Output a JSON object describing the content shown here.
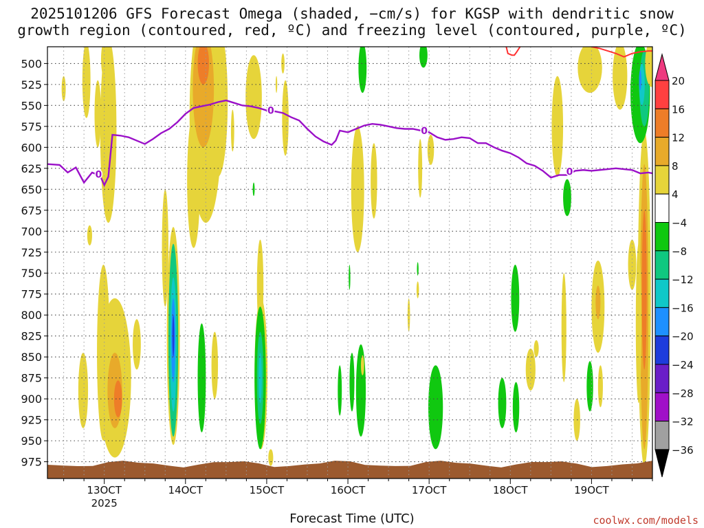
{
  "chart_data": {
    "type": "heatmap",
    "title": "2025101206 GFS Forecast Omega (shaded, −cm/s) for KGSP with dendritic snow",
    "title_line2": "growth region (contoured, red, ºC) and freezing level (contoured, purple, ºC)",
    "xlabel": "Forecast Time (UTC)",
    "credit": "coolwx.com/models",
    "xlim_days": [
      12.3,
      19.75
    ],
    "ylim_hpa": [
      480,
      995
    ],
    "x_ticks": [
      {
        "day": 13,
        "label": "13OCT",
        "sub": "2025"
      },
      {
        "day": 14,
        "label": "14OCT",
        "sub": ""
      },
      {
        "day": 15,
        "label": "15OCT",
        "sub": ""
      },
      {
        "day": 16,
        "label": "16OCT",
        "sub": ""
      },
      {
        "day": 17,
        "label": "17OCT",
        "sub": ""
      },
      {
        "day": 18,
        "label": "18OCT",
        "sub": ""
      },
      {
        "day": 19,
        "label": "19OCT",
        "sub": ""
      }
    ],
    "y_ticks": [
      500,
      525,
      550,
      575,
      600,
      625,
      650,
      675,
      700,
      725,
      750,
      775,
      800,
      825,
      850,
      875,
      900,
      925,
      950,
      975
    ],
    "colorbar": {
      "levels": [
        "20",
        "16",
        "12",
        "8",
        "4",
        "−4",
        "−8",
        "−12",
        "−16",
        "−20",
        "−24",
        "−28",
        "−32",
        "−36"
      ],
      "colors": [
        "#ee3a7f",
        "#ff4040",
        "#ee7d28",
        "#e8aa2a",
        "#e6d43a",
        "#ffffff",
        "#10c810",
        "#10c880",
        "#10c8c8",
        "#1e90ff",
        "#1e3cdc",
        "#6a1ec8",
        "#a010c8",
        "#a0a0a0",
        "#000000"
      ]
    },
    "freezing_level": {
      "label": "0",
      "x": [
        12.3,
        12.45,
        12.55,
        12.65,
        12.75,
        12.85,
        12.95,
        13.0,
        13.05,
        13.1,
        13.2,
        13.3,
        13.4,
        13.5,
        13.6,
        13.7,
        13.8,
        13.9,
        14.0,
        14.1,
        14.2,
        14.3,
        14.4,
        14.5,
        14.6,
        14.7,
        14.8,
        14.9,
        15.0,
        15.1,
        15.2,
        15.3,
        15.4,
        15.5,
        15.6,
        15.7,
        15.8,
        15.85,
        15.9,
        16.0,
        16.1,
        16.2,
        16.3,
        16.4,
        16.5,
        16.6,
        16.7,
        16.8,
        16.9,
        17.0,
        17.1,
        17.2,
        17.3,
        17.4,
        17.5,
        17.6,
        17.7,
        17.8,
        17.9,
        18.0,
        18.1,
        18.2,
        18.3,
        18.4,
        18.5,
        18.6,
        18.7,
        18.8,
        18.9,
        19.0,
        19.1,
        19.2,
        19.3,
        19.4,
        19.5,
        19.6,
        19.7,
        19.75
      ],
      "y": [
        620,
        621,
        630,
        624,
        642,
        630,
        634,
        645,
        635,
        585,
        586,
        588,
        592,
        596,
        590,
        583,
        578,
        570,
        560,
        553,
        551,
        549,
        546,
        544,
        547,
        550,
        551,
        553,
        556,
        557,
        559,
        564,
        568,
        578,
        587,
        593,
        597,
        592,
        580,
        582,
        578,
        574,
        572,
        573,
        575,
        577,
        578,
        578,
        580,
        582,
        588,
        591,
        590,
        588,
        589,
        595,
        595,
        600,
        604,
        607,
        612,
        619,
        622,
        628,
        636,
        633,
        633,
        628,
        627,
        628,
        627,
        626,
        625,
        626,
        627,
        631,
        630,
        631
      ]
    },
    "dgz_contour": {
      "x": [
        17.95,
        17.97,
        18.02,
        18.05,
        18.08,
        18.12
      ],
      "y": [
        480,
        488,
        490,
        490,
        486,
        480
      ]
    },
    "dgz_contour2": {
      "x": [
        19.0,
        19.1,
        19.2,
        19.3,
        19.4,
        19.5,
        19.6,
        19.7,
        19.75
      ],
      "y": [
        480,
        482,
        485,
        488,
        492,
        488,
        486,
        485,
        485
      ]
    },
    "omega_areas": [
      {
        "d": 12.78,
        "p": 520,
        "rx": 0.05,
        "ry": 45,
        "v": 4
      },
      {
        "d": 12.5,
        "p": 530,
        "rx": 0.025,
        "ry": 15,
        "v": 4
      },
      {
        "d": 13.05,
        "p": 580,
        "rx": 0.1,
        "ry": 110,
        "v": 4
      },
      {
        "d": 13.02,
        "p": 495,
        "rx": 0.06,
        "ry": 25,
        "v": 4
      },
      {
        "d": 12.92,
        "p": 560,
        "rx": 0.04,
        "ry": 40,
        "v": 4
      },
      {
        "d": 12.82,
        "p": 705,
        "rx": 0.03,
        "ry": 12,
        "v": 4
      },
      {
        "d": 12.99,
        "p": 845,
        "rx": 0.08,
        "ry": 105,
        "v": 4
      },
      {
        "d": 13.13,
        "p": 875,
        "rx": 0.2,
        "ry": 95,
        "v": 4
      },
      {
        "d": 12.74,
        "p": 890,
        "rx": 0.06,
        "ry": 45,
        "v": 4
      },
      {
        "d": 13.4,
        "p": 835,
        "rx": 0.05,
        "ry": 30,
        "v": 4
      },
      {
        "d": 13.13,
        "p": 890,
        "rx": 0.09,
        "ry": 45,
        "v": 8
      },
      {
        "d": 13.17,
        "p": 900,
        "rx": 0.05,
        "ry": 22,
        "v": 12
      },
      {
        "d": 14.25,
        "p": 560,
        "rx": 0.2,
        "ry": 130,
        "v": 4
      },
      {
        "d": 14.4,
        "p": 545,
        "rx": 0.12,
        "ry": 90,
        "v": 4
      },
      {
        "d": 14.1,
        "p": 640,
        "rx": 0.08,
        "ry": 80,
        "v": 4
      },
      {
        "d": 13.75,
        "p": 720,
        "rx": 0.04,
        "ry": 70,
        "v": 4
      },
      {
        "d": 14.22,
        "p": 530,
        "rx": 0.13,
        "ry": 70,
        "v": 8
      },
      {
        "d": 14.22,
        "p": 500,
        "rx": 0.07,
        "ry": 25,
        "v": 12
      },
      {
        "d": 13.85,
        "p": 825,
        "rx": 0.08,
        "ry": 130,
        "v": 4
      },
      {
        "d": 13.85,
        "p": 830,
        "rx": 0.06,
        "ry": 115,
        "v": -8
      },
      {
        "d": 13.85,
        "p": 835,
        "rx": 0.04,
        "ry": 80,
        "v": -12
      },
      {
        "d": 13.85,
        "p": 830,
        "rx": 0.025,
        "ry": 50,
        "v": -16
      },
      {
        "d": 13.85,
        "p": 825,
        "rx": 0.012,
        "ry": 25,
        "v": -20
      },
      {
        "d": 14.2,
        "p": 875,
        "rx": 0.05,
        "ry": 65,
        "v": -4
      },
      {
        "d": 14.36,
        "p": 860,
        "rx": 0.04,
        "ry": 40,
        "v": 4
      },
      {
        "d": 14.84,
        "p": 540,
        "rx": 0.1,
        "ry": 50,
        "v": 4
      },
      {
        "d": 14.58,
        "p": 580,
        "rx": 0.02,
        "ry": 25,
        "v": 4
      },
      {
        "d": 14.92,
        "p": 765,
        "rx": 0.04,
        "ry": 55,
        "v": 4
      },
      {
        "d": 14.84,
        "p": 650,
        "rx": 0.012,
        "ry": 8,
        "v": -4
      },
      {
        "d": 14.93,
        "p": 870,
        "rx": 0.08,
        "ry": 90,
        "v": 4
      },
      {
        "d": 14.92,
        "p": 875,
        "rx": 0.07,
        "ry": 85,
        "v": -4
      },
      {
        "d": 14.92,
        "p": 875,
        "rx": 0.04,
        "ry": 55,
        "v": -8
      },
      {
        "d": 14.92,
        "p": 875,
        "rx": 0.02,
        "ry": 30,
        "v": -12
      },
      {
        "d": 15.05,
        "p": 970,
        "rx": 0.03,
        "ry": 10,
        "v": 4
      },
      {
        "d": 15.2,
        "p": 500,
        "rx": 0.02,
        "ry": 12,
        "v": 4
      },
      {
        "d": 15.12,
        "p": 525,
        "rx": 0.01,
        "ry": 10,
        "v": 4
      },
      {
        "d": 16.12,
        "p": 650,
        "rx": 0.08,
        "ry": 75,
        "v": 4
      },
      {
        "d": 16.32,
        "p": 640,
        "rx": 0.04,
        "ry": 45,
        "v": 4
      },
      {
        "d": 15.23,
        "p": 565,
        "rx": 0.04,
        "ry": 45,
        "v": 4
      },
      {
        "d": 16.18,
        "p": 505,
        "rx": 0.05,
        "ry": 30,
        "v": -4
      },
      {
        "d": 16.02,
        "p": 755,
        "rx": 0.01,
        "ry": 15,
        "v": -4
      },
      {
        "d": 15.9,
        "p": 890,
        "rx": 0.025,
        "ry": 30,
        "v": -4
      },
      {
        "d": 16.05,
        "p": 880,
        "rx": 0.03,
        "ry": 35,
        "v": -4
      },
      {
        "d": 16.16,
        "p": 890,
        "rx": 0.06,
        "ry": 55,
        "v": -4
      },
      {
        "d": 16.18,
        "p": 860,
        "rx": 0.02,
        "ry": 12,
        "v": 4
      },
      {
        "d": 16.93,
        "p": 490,
        "rx": 0.05,
        "ry": 15,
        "v": -4
      },
      {
        "d": 16.75,
        "p": 800,
        "rx": 0.015,
        "ry": 20,
        "v": 4
      },
      {
        "d": 16.86,
        "p": 770,
        "rx": 0.015,
        "ry": 10,
        "v": 4
      },
      {
        "d": 16.89,
        "p": 625,
        "rx": 0.025,
        "ry": 35,
        "v": 4
      },
      {
        "d": 17.02,
        "p": 603,
        "rx": 0.04,
        "ry": 18,
        "v": 4
      },
      {
        "d": 16.86,
        "p": 745,
        "rx": 0.01,
        "ry": 8,
        "v": -4
      },
      {
        "d": 17.08,
        "p": 910,
        "rx": 0.09,
        "ry": 50,
        "v": -4
      },
      {
        "d": 17.9,
        "p": 905,
        "rx": 0.05,
        "ry": 30,
        "v": -4
      },
      {
        "d": 18.06,
        "p": 780,
        "rx": 0.05,
        "ry": 40,
        "v": -4
      },
      {
        "d": 18.07,
        "p": 910,
        "rx": 0.04,
        "ry": 30,
        "v": -4
      },
      {
        "d": 18.25,
        "p": 865,
        "rx": 0.06,
        "ry": 25,
        "v": 4
      },
      {
        "d": 18.32,
        "p": 840,
        "rx": 0.03,
        "ry": 10,
        "v": 4
      },
      {
        "d": 18.58,
        "p": 575,
        "rx": 0.07,
        "ry": 60,
        "v": 4
      },
      {
        "d": 18.7,
        "p": 660,
        "rx": 0.05,
        "ry": 22,
        "v": -4
      },
      {
        "d": 18.66,
        "p": 815,
        "rx": 0.03,
        "ry": 65,
        "v": 4
      },
      {
        "d": 18.82,
        "p": 925,
        "rx": 0.04,
        "ry": 25,
        "v": 4
      },
      {
        "d": 18.98,
        "p": 885,
        "rx": 0.04,
        "ry": 30,
        "v": -4
      },
      {
        "d": 19.11,
        "p": 885,
        "rx": 0.03,
        "ry": 25,
        "v": 4
      },
      {
        "d": 19.08,
        "p": 790,
        "rx": 0.08,
        "ry": 55,
        "v": 4
      },
      {
        "d": 19.08,
        "p": 785,
        "rx": 0.03,
        "ry": 20,
        "v": 8
      },
      {
        "d": 19.5,
        "p": 740,
        "rx": 0.05,
        "ry": 30,
        "v": 4
      },
      {
        "d": 19.65,
        "p": 780,
        "rx": 0.08,
        "ry": 200,
        "v": 4
      },
      {
        "d": 19.65,
        "p": 790,
        "rx": 0.05,
        "ry": 170,
        "v": 8
      },
      {
        "d": 19.65,
        "p": 770,
        "rx": 0.03,
        "ry": 95,
        "v": 12
      },
      {
        "d": 19.58,
        "p": 810,
        "rx": 0.035,
        "ry": 95,
        "v": 4
      },
      {
        "d": 18.98,
        "p": 505,
        "rx": 0.15,
        "ry": 30,
        "v": 4
      },
      {
        "d": 19.35,
        "p": 515,
        "rx": 0.09,
        "ry": 40,
        "v": 4
      },
      {
        "d": 19.6,
        "p": 535,
        "rx": 0.12,
        "ry": 60,
        "v": -4
      },
      {
        "d": 19.65,
        "p": 530,
        "rx": 0.06,
        "ry": 45,
        "v": -8
      },
      {
        "d": 19.62,
        "p": 525,
        "rx": 0.035,
        "ry": 25,
        "v": -12
      },
      {
        "d": 19.6,
        "p": 520,
        "rx": 0.015,
        "ry": 12,
        "v": -16
      },
      {
        "d": 19.74,
        "p": 500,
        "rx": 0.08,
        "ry": 28,
        "v": 4
      }
    ],
    "terrain_pressure_hpa": 977
  }
}
